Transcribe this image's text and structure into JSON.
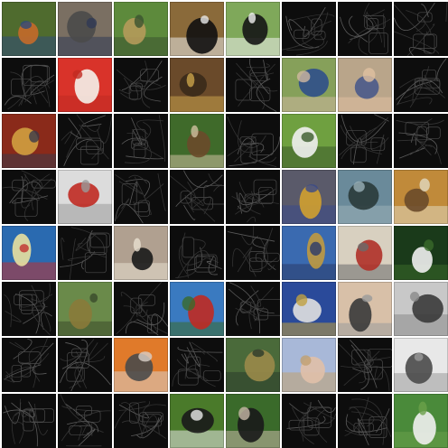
{
  "grid": {
    "rows": 8,
    "columns": 8,
    "background": "#ffffff",
    "tiles": [
      {
        "kind": "photo",
        "subject": "person-chainsaw",
        "colors": [
          "#4f6b2e",
          "#c46a2a",
          "#2f4a7a"
        ]
      },
      {
        "kind": "photo",
        "subject": "person-indoor",
        "colors": [
          "#7a6f62",
          "#4a4a4a",
          "#2f3a55"
        ]
      },
      {
        "kind": "photo",
        "subject": "person-fish",
        "colors": [
          "#5d8a3c",
          "#b59a5a",
          "#3b5230"
        ]
      },
      {
        "kind": "photo",
        "subject": "dog",
        "colors": [
          "#8a6a3a",
          "#111111",
          "#e8e8e8"
        ]
      },
      {
        "kind": "photo",
        "subject": "dog",
        "colors": [
          "#7fa85a",
          "#151515",
          "#f0f0f0"
        ]
      },
      {
        "kind": "edge",
        "subject": "edges",
        "colors": []
      },
      {
        "kind": "edge",
        "subject": "edges",
        "colors": []
      },
      {
        "kind": "edge",
        "subject": "edges",
        "colors": []
      },
      {
        "kind": "edge",
        "subject": "edges",
        "colors": []
      },
      {
        "kind": "photo",
        "subject": "parachute",
        "colors": [
          "#d9332a",
          "#f4f1ea",
          "#c02a22"
        ]
      },
      {
        "kind": "edge",
        "subject": "edges",
        "colors": []
      },
      {
        "kind": "photo",
        "subject": "shelves",
        "colors": [
          "#6a4a2a",
          "#3a2a1a",
          "#c9a24a"
        ]
      },
      {
        "kind": "edge",
        "subject": "edges",
        "colors": []
      },
      {
        "kind": "photo",
        "subject": "person-outdoor",
        "colors": [
          "#86a05a",
          "#2f4f8a",
          "#d0b8a0"
        ]
      },
      {
        "kind": "photo",
        "subject": "two-people",
        "colors": [
          "#b9a58a",
          "#4a5a8a",
          "#e0c0a0"
        ]
      },
      {
        "kind": "edge",
        "subject": "edges",
        "colors": []
      },
      {
        "kind": "photo",
        "subject": "person-instrument",
        "colors": [
          "#8a2a1a",
          "#d0a040",
          "#3a3a4a"
        ]
      },
      {
        "kind": "edge",
        "subject": "edges",
        "colors": []
      },
      {
        "kind": "edge",
        "subject": "edges",
        "colors": []
      },
      {
        "kind": "photo",
        "subject": "person-forest",
        "colors": [
          "#3f6a2a",
          "#6a4a2a",
          "#d0c0a0"
        ]
      },
      {
        "kind": "edge",
        "subject": "edges",
        "colors": []
      },
      {
        "kind": "photo",
        "subject": "person-grass",
        "colors": [
          "#6fa040",
          "#f0f0f0",
          "#3a5a2a"
        ]
      },
      {
        "kind": "edge",
        "subject": "edges",
        "colors": []
      },
      {
        "kind": "edge",
        "subject": "edges",
        "colors": []
      },
      {
        "kind": "edge",
        "subject": "edges",
        "colors": []
      },
      {
        "kind": "photo",
        "subject": "parachute-sky",
        "colors": [
          "#dcdcdc",
          "#c02a22",
          "#9a9a9a"
        ]
      },
      {
        "kind": "edge",
        "subject": "edges",
        "colors": []
      },
      {
        "kind": "edge",
        "subject": "edges",
        "colors": []
      },
      {
        "kind": "edge",
        "subject": "edges",
        "colors": []
      },
      {
        "kind": "photo",
        "subject": "objects-table",
        "colors": [
          "#5a5a6a",
          "#d0a030",
          "#3a4a8a"
        ]
      },
      {
        "kind": "photo",
        "subject": "road-dusk",
        "colors": [
          "#6a8a9a",
          "#2a3a3a",
          "#9ab0b8"
        ]
      },
      {
        "kind": "photo",
        "subject": "church-autumn",
        "colors": [
          "#c08a3a",
          "#6a4a2a",
          "#e0d8c0"
        ]
      },
      {
        "kind": "photo",
        "subject": "gas-pump",
        "colors": [
          "#2a6ab0",
          "#e8e0a0",
          "#c03030"
        ]
      },
      {
        "kind": "edge",
        "subject": "edges",
        "colors": []
      },
      {
        "kind": "photo",
        "subject": "dogs",
        "colors": [
          "#b0a090",
          "#1a1a1a",
          "#e8e0d0"
        ]
      },
      {
        "kind": "edge",
        "subject": "edges",
        "colors": []
      },
      {
        "kind": "edge",
        "subject": "edges",
        "colors": []
      },
      {
        "kind": "photo",
        "subject": "child-fish",
        "colors": [
          "#3a6ab0",
          "#c09a40",
          "#2a3a6a"
        ]
      },
      {
        "kind": "photo",
        "subject": "fire-truck",
        "colors": [
          "#d8d0c0",
          "#b03028",
          "#6a6a6a"
        ]
      },
      {
        "kind": "photo",
        "subject": "golf-ball",
        "colors": [
          "#1a3a1a",
          "#f0f0f0",
          "#3a6a2a"
        ]
      },
      {
        "kind": "edge",
        "subject": "edges",
        "colors": []
      },
      {
        "kind": "photo",
        "subject": "person-fish",
        "colors": [
          "#6a8a4a",
          "#8a7a3a",
          "#3a4a2a"
        ]
      },
      {
        "kind": "edge",
        "subject": "edges",
        "colors": []
      },
      {
        "kind": "photo",
        "subject": "red-church",
        "colors": [
          "#3a7ac0",
          "#c02a22",
          "#3a6a2a"
        ]
      },
      {
        "kind": "edge",
        "subject": "edges",
        "colors": []
      },
      {
        "kind": "photo",
        "subject": "gas-pump-sign",
        "colors": [
          "#2a4a9a",
          "#e0e0e0",
          "#c0a040"
        ]
      },
      {
        "kind": "photo",
        "subject": "radio",
        "colors": [
          "#d8c0a8",
          "#3a3a3a",
          "#9a9a9a"
        ]
      },
      {
        "kind": "photo",
        "subject": "church-bw",
        "colors": [
          "#c8c8c8",
          "#3a3a3a",
          "#8a8a8a"
        ]
      },
      {
        "kind": "edge",
        "subject": "edges",
        "colors": []
      },
      {
        "kind": "edge",
        "subject": "edges",
        "colors": []
      },
      {
        "kind": "photo",
        "subject": "chainsaw",
        "colors": [
          "#e07a2a",
          "#4a4a4a",
          "#d8d0c8"
        ]
      },
      {
        "kind": "edge",
        "subject": "edges",
        "colors": []
      },
      {
        "kind": "photo",
        "subject": "person-fish",
        "colors": [
          "#4a6a3a",
          "#9a8a4a",
          "#2a3a2a"
        ]
      },
      {
        "kind": "photo",
        "subject": "sky-field",
        "colors": [
          "#a8b8d8",
          "#e0c0a8",
          "#c0a070"
        ]
      },
      {
        "kind": "edge",
        "subject": "edges",
        "colors": []
      },
      {
        "kind": "photo",
        "subject": "cassette-player",
        "colors": [
          "#e8e8e8",
          "#4a4a4a",
          "#9a9a9a"
        ]
      },
      {
        "kind": "edge",
        "subject": "edges",
        "colors": []
      },
      {
        "kind": "edge",
        "subject": "edges",
        "colors": []
      },
      {
        "kind": "edge",
        "subject": "edges",
        "colors": []
      },
      {
        "kind": "photo",
        "subject": "dog-grass",
        "colors": [
          "#4a7a2a",
          "#1a1a1a",
          "#e8e8e8"
        ]
      },
      {
        "kind": "photo",
        "subject": "dog-fence",
        "colors": [
          "#3a6a2a",
          "#1a1a1a",
          "#c8b8a8"
        ]
      },
      {
        "kind": "edge",
        "subject": "edges",
        "colors": []
      },
      {
        "kind": "edge",
        "subject": "edges",
        "colors": []
      },
      {
        "kind": "photo",
        "subject": "golfer",
        "colors": [
          "#4a8a3a",
          "#f0f0f0",
          "#6aa04a"
        ]
      }
    ]
  }
}
